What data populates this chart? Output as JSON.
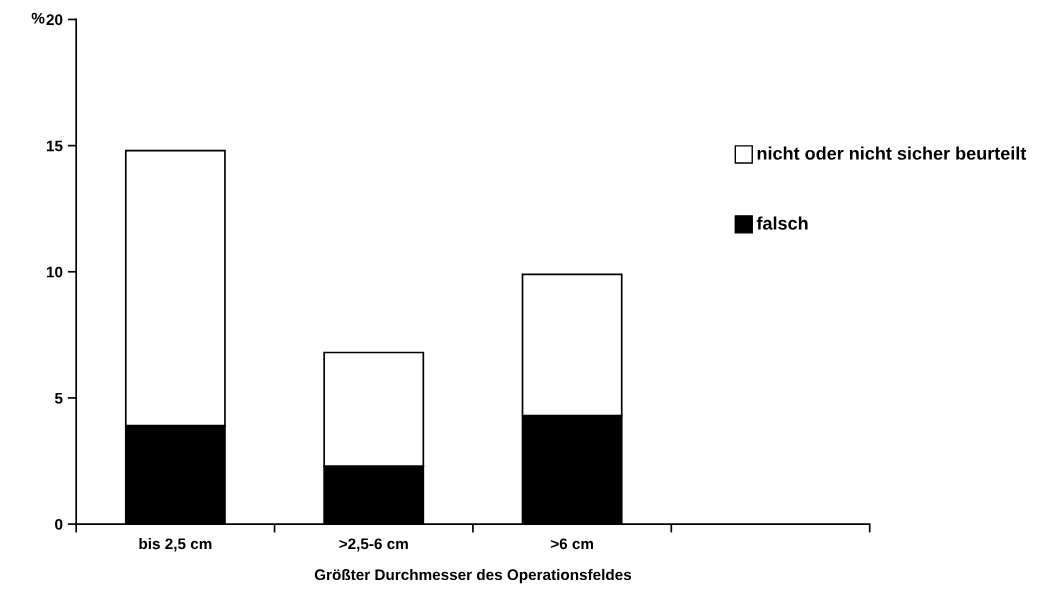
{
  "chart_data": {
    "type": "bar",
    "stacked": true,
    "ylabel": "%",
    "xlabel": "Größter Durchmesser des Operationsfeldes",
    "categories": [
      "bis 2,5 cm",
      ">2,5-6 cm",
      ">6 cm",
      null
    ],
    "series": [
      {
        "name": "falsch",
        "color": "#000000",
        "values": [
          3.9,
          2.3,
          4.3,
          null
        ]
      },
      {
        "name": "nicht oder nicht sicher beurteilt",
        "color": "#ffffff",
        "values": [
          10.9,
          4.5,
          5.6,
          null
        ]
      }
    ],
    "ylim": [
      0,
      20
    ],
    "yticks": [
      0,
      5,
      10,
      15,
      20
    ],
    "grid": false,
    "legend": "right"
  }
}
